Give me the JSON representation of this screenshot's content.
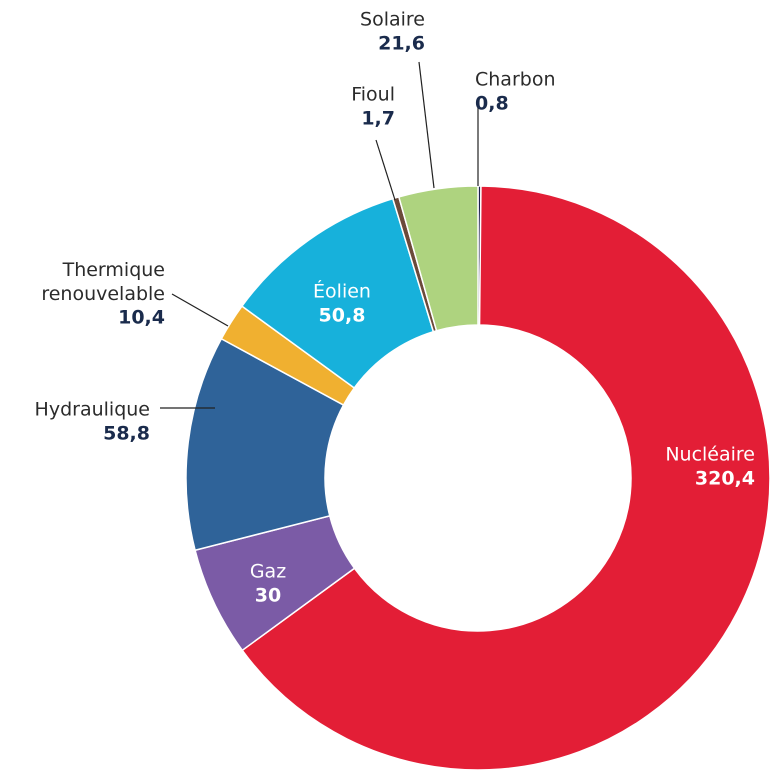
{
  "chart_data": {
    "type": "donut",
    "categories": [
      "Charbon",
      "Nucléaire",
      "Gaz",
      "Hydraulique",
      "Thermique renouvelable",
      "Éolien",
      "Fioul",
      "Solaire"
    ],
    "values": [
      0.8,
      320.4,
      30,
      58.8,
      10.4,
      50.8,
      1.7,
      21.6
    ],
    "value_labels": [
      "0,8",
      "320,4",
      "30",
      "58,8",
      "10,4",
      "50,8",
      "1,7",
      "21,6"
    ],
    "colors": [
      "#1a1f4d",
      "#e31e36",
      "#7b5ba6",
      "#2f6399",
      "#f0b030",
      "#17b1db",
      "#6b4a3a",
      "#aed37f"
    ]
  }
}
